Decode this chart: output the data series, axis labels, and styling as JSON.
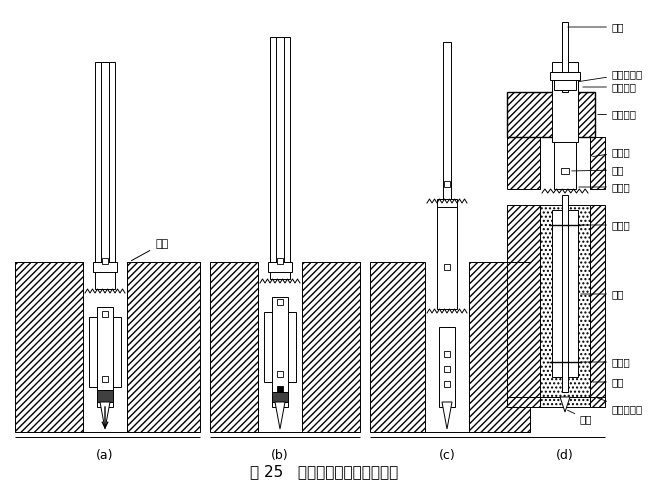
{
  "title": "图 25   钻孔法埋设分层沉降标志",
  "title_fontsize": 11,
  "bg_color": "#ffffff",
  "figsize": [
    6.49,
    4.92
  ],
  "dpi": 100,
  "labels": {
    "a": "(a)",
    "b": "(b)",
    "c": "(c)",
    "d": "(d)"
  },
  "annotation_a_text": "地面",
  "ann_d": [
    "测标",
    "保护管测头",
    "定位套箍",
    "基础底板",
    "钻孔壁",
    "滑轮",
    "保护管",
    "上塞线",
    "套管",
    "下塞线",
    "灌砂",
    "埋土层底面",
    "标脚"
  ]
}
